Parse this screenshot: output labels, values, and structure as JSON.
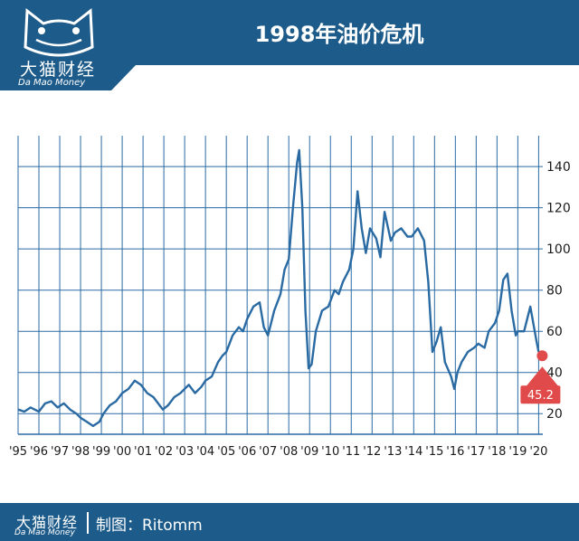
{
  "header": {
    "title": "1998年油价危机",
    "logo_cn": "大猫财经",
    "logo_en": "Da Mao Money"
  },
  "footer": {
    "logo_cn": "大猫财经",
    "logo_en": "Da Mao Money",
    "credit": "制图：Ritomm"
  },
  "colors": {
    "brand": "#1d5b8a",
    "line": "#2a6aa3",
    "grid": "#2a6aa3",
    "marker": "#e04a4a"
  },
  "chart_data": {
    "type": "line",
    "title": "1998年油价危机",
    "xlabel": "",
    "ylabel": "",
    "xlim": [
      1995,
      2020.2
    ],
    "ylim": [
      10,
      155
    ],
    "x_tick_labels": [
      "'95",
      "'96",
      "'97",
      "'98",
      "'99",
      "'00",
      "'01",
      "'02",
      "'03",
      "'04",
      "'05",
      "'06",
      "'07",
      "'08",
      "'09",
      "'10",
      "'11",
      "'12",
      "'13",
      "'14",
      "'15",
      "'16",
      "'17",
      "'18",
      "'19",
      "'20"
    ],
    "y_ticks": [
      20,
      40,
      60,
      80,
      100,
      120,
      140
    ],
    "grid": true,
    "series": [
      {
        "x": [
          1995.0,
          1995.3,
          1995.6,
          1996.0,
          1996.3,
          1996.6,
          1996.9,
          1997.2,
          1997.5,
          1997.8,
          1998.0,
          1998.3,
          1998.6,
          1998.9,
          1999.1,
          1999.4,
          1999.7,
          2000.0,
          2000.3,
          2000.6,
          2000.9,
          2001.2,
          2001.5,
          2001.8,
          2001.95,
          2002.2,
          2002.5,
          2002.8,
          2003.0,
          2003.2,
          2003.5,
          2003.8,
          2004.0,
          2004.3,
          2004.6,
          2004.8,
          2005.0,
          2005.3,
          2005.6,
          2005.8,
          2006.0,
          2006.3,
          2006.6,
          2006.8,
          2007.0,
          2007.3,
          2007.6,
          2007.8,
          2008.0,
          2008.2,
          2008.4,
          2008.5,
          2008.65,
          2008.8,
          2008.95,
          2009.1,
          2009.3,
          2009.6,
          2009.9,
          2010.2,
          2010.4,
          2010.6,
          2010.9,
          2011.1,
          2011.3,
          2011.5,
          2011.7,
          2011.9,
          2012.2,
          2012.4,
          2012.6,
          2012.9,
          2013.1,
          2013.4,
          2013.7,
          2013.9,
          2014.2,
          2014.5,
          2014.7,
          2014.9,
          2015.1,
          2015.3,
          2015.5,
          2015.8,
          2015.95,
          2016.1,
          2016.3,
          2016.6,
          2016.9,
          2017.1,
          2017.4,
          2017.6,
          2017.9,
          2018.1,
          2018.3,
          2018.5,
          2018.7,
          2018.9,
          2019.0,
          2019.3,
          2019.6,
          2019.9,
          2020.0
        ],
        "y": [
          22,
          21,
          23,
          21,
          25,
          26,
          23,
          25,
          22,
          20,
          18,
          16,
          14,
          16,
          20,
          24,
          26,
          30,
          32,
          36,
          34,
          30,
          28,
          24,
          22,
          24,
          28,
          30,
          32,
          34,
          30,
          33,
          36,
          38,
          45,
          48,
          50,
          58,
          62,
          60,
          66,
          72,
          74,
          62,
          58,
          70,
          78,
          90,
          95,
          120,
          142,
          148,
          120,
          70,
          42,
          44,
          60,
          70,
          72,
          80,
          78,
          84,
          90,
          100,
          128,
          110,
          98,
          110,
          105,
          96,
          118,
          104,
          108,
          110,
          106,
          106,
          110,
          104,
          84,
          50,
          55,
          62,
          45,
          38,
          32,
          40,
          45,
          50,
          52,
          54,
          52,
          60,
          64,
          70,
          85,
          88,
          70,
          58,
          60,
          60,
          72,
          55,
          50
        ]
      }
    ],
    "annotation": {
      "label": "45.2",
      "x": 2020.0,
      "y": 49
    }
  }
}
